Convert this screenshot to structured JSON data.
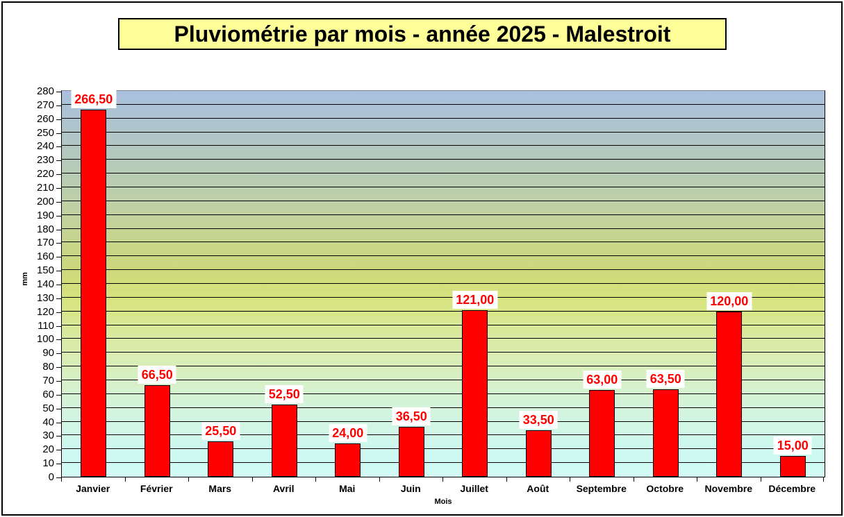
{
  "page": {
    "background": "#ffffff",
    "border_color": "#000000"
  },
  "chart_data": {
    "type": "bar",
    "title": "Pluviométrie par mois - année 2025 - Malestroit",
    "title_bg": "#ffff99",
    "xlabel": "Mois",
    "ylabel": "mm",
    "categories": [
      "Janvier",
      "Février",
      "Mars",
      "Avril",
      "Mai",
      "Juin",
      "Juillet",
      "Août",
      "Septembre",
      "Octobre",
      "Novembre",
      "Décembre"
    ],
    "values": [
      266.5,
      66.5,
      25.5,
      52.5,
      24.0,
      36.5,
      121.0,
      33.5,
      63.0,
      63.5,
      120.0,
      15.0
    ],
    "value_labels": [
      "266,50",
      "66,50",
      "25,50",
      "52,50",
      "24,00",
      "36,50",
      "121,00",
      "33,50",
      "63,00",
      "63,50",
      "120,00",
      "15,00"
    ],
    "ylim": [
      0,
      280
    ],
    "ytick_step": 10,
    "yticks": [
      0,
      10,
      20,
      30,
      40,
      50,
      60,
      70,
      80,
      90,
      100,
      110,
      120,
      130,
      140,
      150,
      160,
      170,
      180,
      190,
      200,
      210,
      220,
      230,
      240,
      250,
      260,
      270,
      280
    ],
    "grid": true,
    "legend_position": "none",
    "bar_color": "#ff0000",
    "bar_border_color": "#000000",
    "value_label_color": "#ff0000",
    "value_label_bg": "#ffffff",
    "plot_background_gradient": [
      "#a9c0de 0%",
      "#b3c8bf 16%",
      "#bfd1a4 30%",
      "#cdd87b 46%",
      "#d8e47e 54%",
      "#d9edb0 68%",
      "#d4f4dc 82%",
      "#cdf9f2 94%",
      "#d2fbf6 100%"
    ]
  }
}
